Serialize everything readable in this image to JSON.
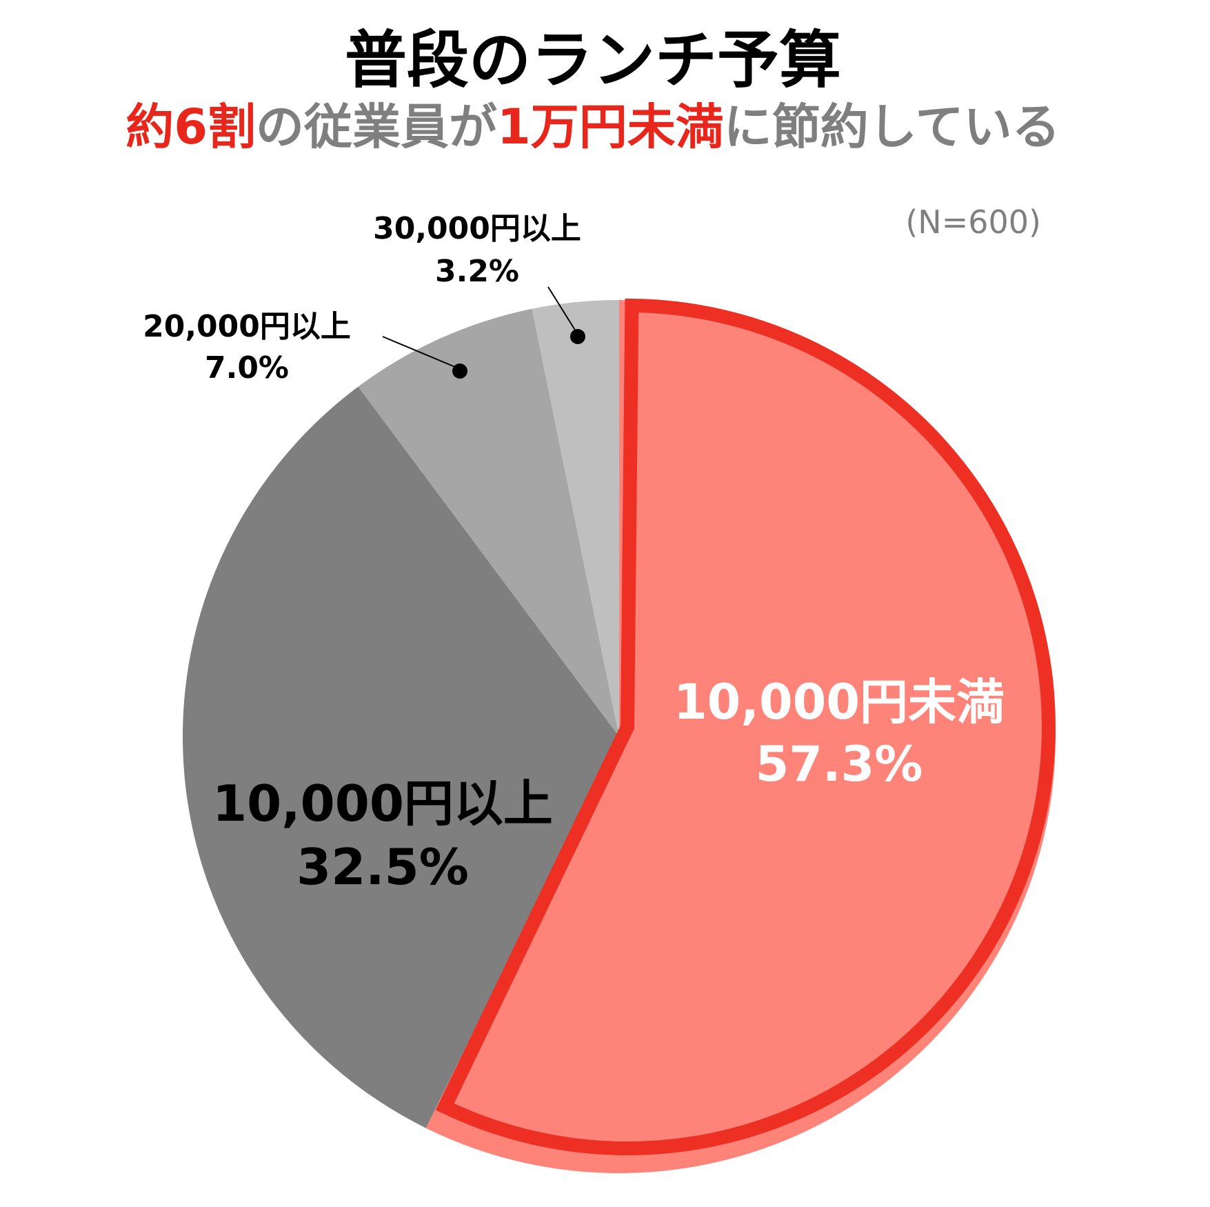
{
  "title": "普段のランチ予算",
  "subtitle_parts": [
    {
      "text": "約6割",
      "color": "#e8261b"
    },
    {
      "text": "の従業員が",
      "color": "#7f7f7f"
    },
    {
      "text": "1万円未満",
      "color": "#e8261b"
    },
    {
      "text": "に節約している",
      "color": "#7f7f7f"
    }
  ],
  "sample_note": "(N=600)",
  "chart_data": {
    "type": "pie",
    "start": "12 o'clock",
    "direction": "clockwise",
    "slices": [
      {
        "label": "10,000円未満",
        "value": 57.3,
        "value_label": "57.3%",
        "color": "#fe8479",
        "outline": "#ee2f24",
        "highlight": true
      },
      {
        "label": "10,000円以上",
        "value": 32.5,
        "value_label": "32.5%",
        "color": "#7f7f7f"
      },
      {
        "label": "20,000円以上",
        "value": 7.0,
        "value_label": "7.0%",
        "color": "#a6a6a6"
      },
      {
        "label": "30,000円以上",
        "value": 3.2,
        "value_label": "3.2%",
        "color": "#bfbfbf"
      }
    ]
  }
}
